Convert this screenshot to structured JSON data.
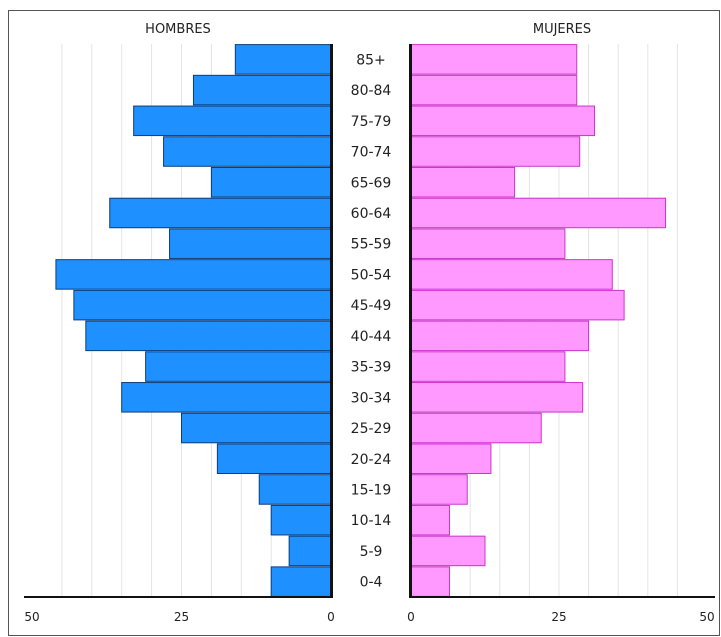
{
  "chart_data": {
    "type": "bar",
    "subtype": "population-pyramid",
    "left_title": "HOMBRES",
    "right_title": "MUJERES",
    "categories": [
      "0-4",
      "5-9",
      "10-14",
      "15-19",
      "20-24",
      "25-29",
      "30-34",
      "35-39",
      "40-44",
      "45-49",
      "50-54",
      "55-59",
      "60-64",
      "65-69",
      "70-74",
      "75-79",
      "80-84",
      "85+"
    ],
    "series": [
      {
        "name": "HOMBRES",
        "color": "#1e90ff",
        "values": [
          10,
          7,
          10,
          12,
          19,
          25,
          35,
          31,
          41,
          43,
          46,
          27,
          37,
          20,
          28,
          33,
          23,
          16
        ]
      },
      {
        "name": "MUJERES",
        "color": "#ff99ff",
        "values": [
          6.5,
          12.5,
          6.5,
          9.5,
          13.5,
          22,
          29,
          26,
          30,
          36,
          34,
          26,
          43,
          17.5,
          28.5,
          31,
          28,
          28
        ]
      }
    ],
    "xlim": [
      0,
      50
    ],
    "x_ticks_left": [
      "50",
      "25",
      "0"
    ],
    "x_ticks_right": [
      "0",
      "25",
      "50"
    ],
    "grid": true,
    "gridline_color": "#e4e4e4",
    "bar_border_colors": {
      "HOMBRES": "#0d3d7a",
      "MUJERES": "#cc33cc"
    }
  }
}
